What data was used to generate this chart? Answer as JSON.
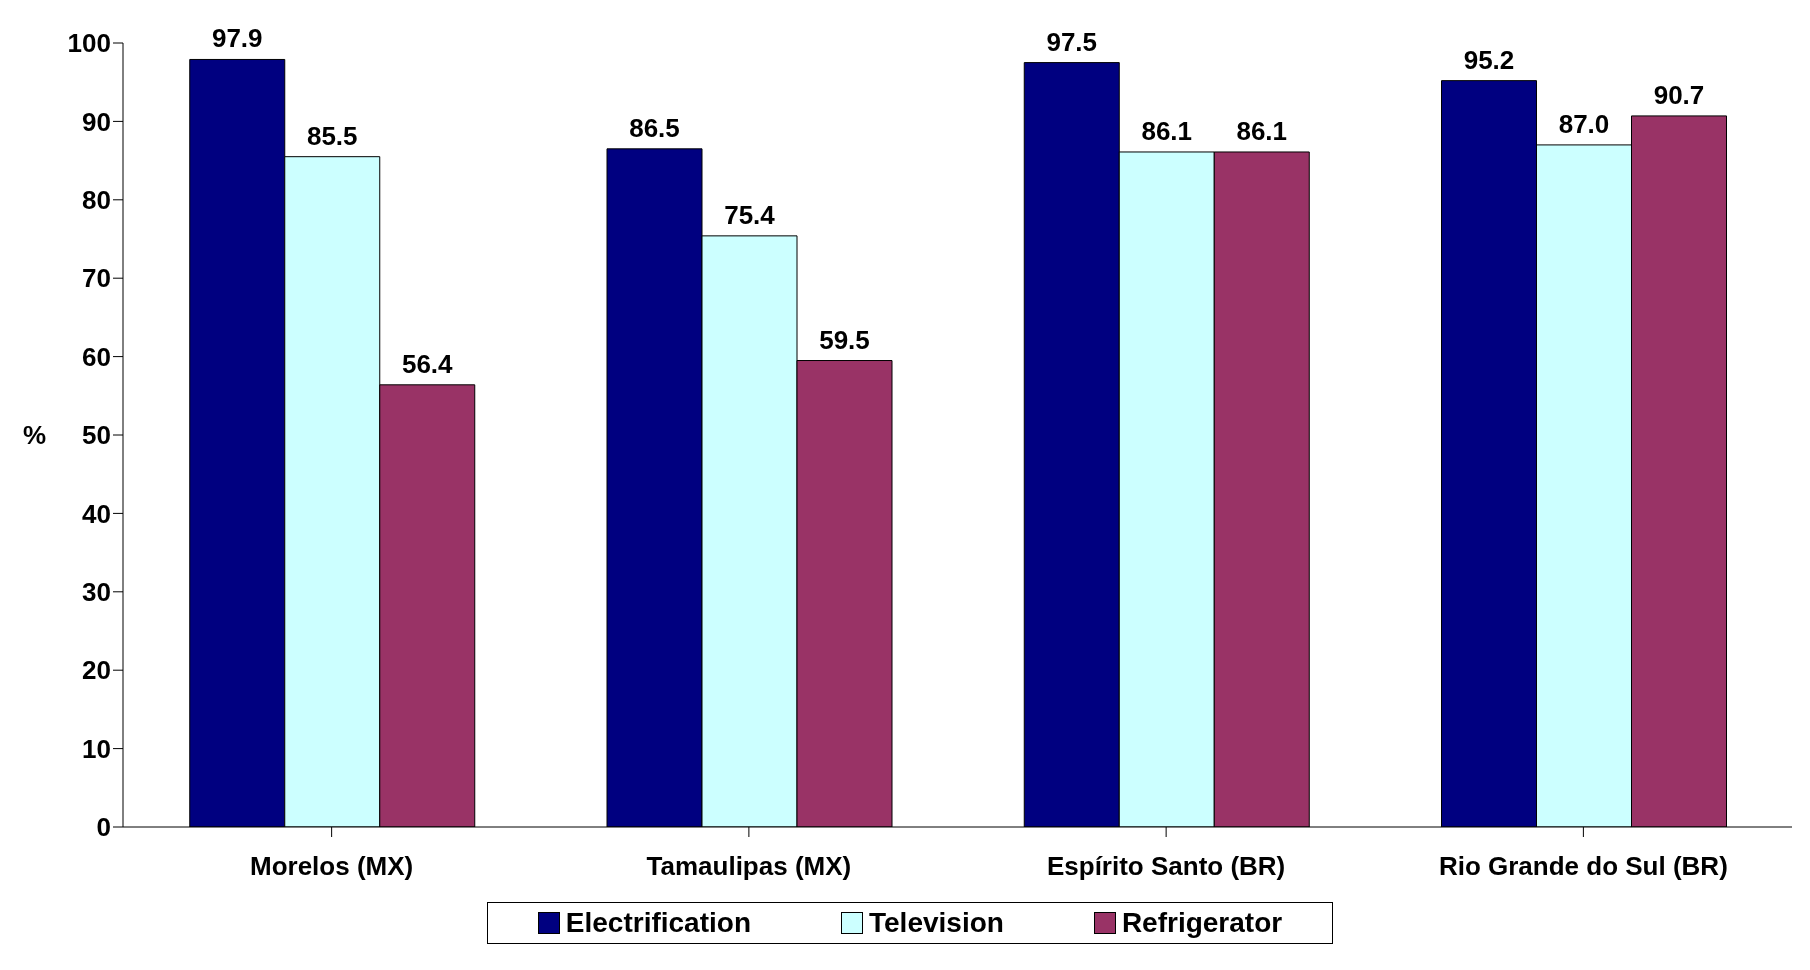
{
  "chart_data": {
    "type": "bar",
    "ylabel": "%",
    "categories": [
      "Morelos (MX)",
      "Tamaulipas (MX)",
      "Espírito Santo (BR)",
      "Rio Grande do Sul (BR)"
    ],
    "series": [
      {
        "name": "Electrification",
        "color": "#000080",
        "values": [
          97.9,
          86.5,
          97.5,
          95.2
        ],
        "value_labels": [
          "97.9",
          "86.5",
          "97.5",
          "95.2"
        ]
      },
      {
        "name": "Television",
        "color": "#ccffff",
        "values": [
          85.5,
          75.4,
          86.1,
          87.0
        ],
        "value_labels": [
          "85.5",
          "75.4",
          "86.1",
          "87.0"
        ]
      },
      {
        "name": "Refrigerator",
        "color": "#993366",
        "values": [
          56.4,
          59.5,
          86.1,
          90.7
        ],
        "value_labels": [
          "56.4",
          "59.5",
          "86.1",
          "90.7"
        ]
      }
    ],
    "ylim": [
      0,
      100
    ],
    "yticks": [
      0,
      10,
      20,
      30,
      40,
      50,
      60,
      70,
      80,
      90,
      100
    ],
    "grid": false,
    "legend": "bottom"
  }
}
